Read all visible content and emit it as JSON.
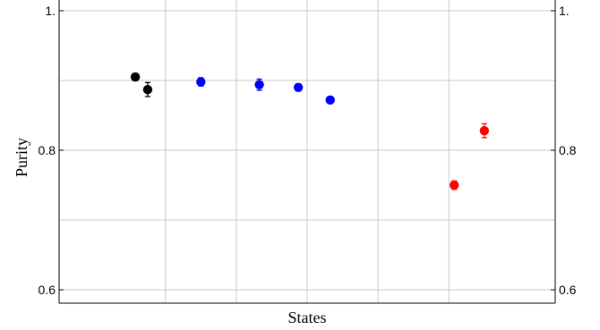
{
  "chart_data": {
    "type": "scatter",
    "title": "",
    "xlabel": "States",
    "ylabel": "Purity",
    "xlim": [
      0,
      14
    ],
    "ylim": [
      0.58,
      1.0
    ],
    "y_ticks": [
      {
        "value": 0.6,
        "label": "0.6"
      },
      {
        "value": 0.8,
        "label": "0.8"
      },
      {
        "value": 1.0,
        "label": "1."
      }
    ],
    "y_gridlines": [
      0.6,
      0.7,
      0.8,
      0.9,
      1.0
    ],
    "x_gridlines": [
      3,
      5,
      7,
      9,
      11
    ],
    "grid": true,
    "mirror_right_axis": true,
    "series": [
      {
        "color": "#000000",
        "points": [
          {
            "x": 2.15,
            "y": 0.905,
            "err": 0.005
          },
          {
            "x": 2.5,
            "y": 0.887,
            "err": 0.01
          }
        ]
      },
      {
        "color": "#0000ff",
        "points": [
          {
            "x": 4.0,
            "y": 0.898,
            "err": 0.006
          },
          {
            "x": 5.65,
            "y": 0.894,
            "err": 0.008
          },
          {
            "x": 6.75,
            "y": 0.89,
            "err": 0.005
          },
          {
            "x": 7.65,
            "y": 0.872,
            "err": 0.005
          }
        ]
      },
      {
        "color": "#ff0000",
        "points": [
          {
            "x": 11.15,
            "y": 0.75,
            "err": 0.006
          },
          {
            "x": 12.0,
            "y": 0.828,
            "err": 0.01
          }
        ]
      }
    ]
  }
}
